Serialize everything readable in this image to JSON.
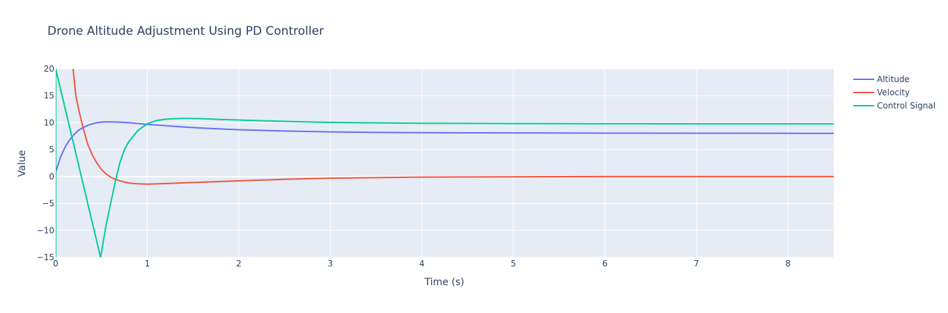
{
  "chart_data": {
    "type": "line",
    "title": "Drone Altitude Adjustment Using PD Controller",
    "xlabel": "Time (s)",
    "ylabel": "Value",
    "xlim": [
      0,
      8.5
    ],
    "ylim": [
      -15,
      20
    ],
    "xticks": [
      0,
      1,
      2,
      3,
      4,
      5,
      6,
      7,
      8
    ],
    "yticks": [
      -15,
      -10,
      -5,
      0,
      5,
      10,
      15,
      20
    ],
    "grid": true,
    "legend_position": "top-right",
    "series": [
      {
        "name": "Altitude",
        "color": "#636efa",
        "x": [
          0,
          0.05,
          0.1,
          0.15,
          0.2,
          0.25,
          0.3,
          0.35,
          0.4,
          0.45,
          0.5,
          0.55,
          0.6,
          0.7,
          0.8,
          0.9,
          1.0,
          1.2,
          1.4,
          1.6,
          1.8,
          2.0,
          2.5,
          3.0,
          3.5,
          4.0,
          5.0,
          6.0,
          7.0,
          8.0,
          8.5
        ],
        "y": [
          0.8,
          3.5,
          5.4,
          6.8,
          7.8,
          8.6,
          9.1,
          9.5,
          9.8,
          10.0,
          10.1,
          10.15,
          10.15,
          10.1,
          10.0,
          9.85,
          9.7,
          9.45,
          9.2,
          9.0,
          8.85,
          8.7,
          8.45,
          8.3,
          8.2,
          8.15,
          8.1,
          8.07,
          8.05,
          8.03,
          8.02
        ]
      },
      {
        "name": "Velocity",
        "color": "#ef553b",
        "x": [
          0.19,
          0.22,
          0.25,
          0.3,
          0.35,
          0.4,
          0.45,
          0.5,
          0.55,
          0.6,
          0.65,
          0.7,
          0.75,
          0.8,
          0.9,
          1.0,
          1.2,
          1.5,
          2.0,
          2.5,
          3.0,
          3.5,
          4.0,
          5.0,
          6.0,
          7.0,
          8.0,
          8.5
        ],
        "y": [
          20,
          15,
          12.5,
          9,
          6,
          4,
          2.5,
          1.3,
          0.5,
          -0.1,
          -0.5,
          -0.8,
          -1.0,
          -1.2,
          -1.35,
          -1.4,
          -1.3,
          -1.1,
          -0.8,
          -0.5,
          -0.3,
          -0.2,
          -0.1,
          -0.05,
          0,
          0,
          0,
          0
        ]
      },
      {
        "name": "Control Signal",
        "color": "#00cc96",
        "x": [
          0.0,
          0.0,
          0.49,
          0.52,
          0.55,
          0.6,
          0.65,
          0.7,
          0.75,
          0.8,
          0.9,
          1.0,
          1.1,
          1.2,
          1.3,
          1.4,
          1.6,
          1.8,
          2.0,
          2.5,
          3.0,
          4.0,
          5.0,
          6.0,
          7.0,
          8.0,
          8.5
        ],
        "y": [
          -15,
          20,
          -15,
          -12,
          -9,
          -5,
          -1,
          2.5,
          5.0,
          6.5,
          8.6,
          9.8,
          10.4,
          10.65,
          10.75,
          10.8,
          10.75,
          10.6,
          10.5,
          10.25,
          10.05,
          9.9,
          9.85,
          9.82,
          9.8,
          9.8,
          9.8
        ]
      }
    ]
  }
}
